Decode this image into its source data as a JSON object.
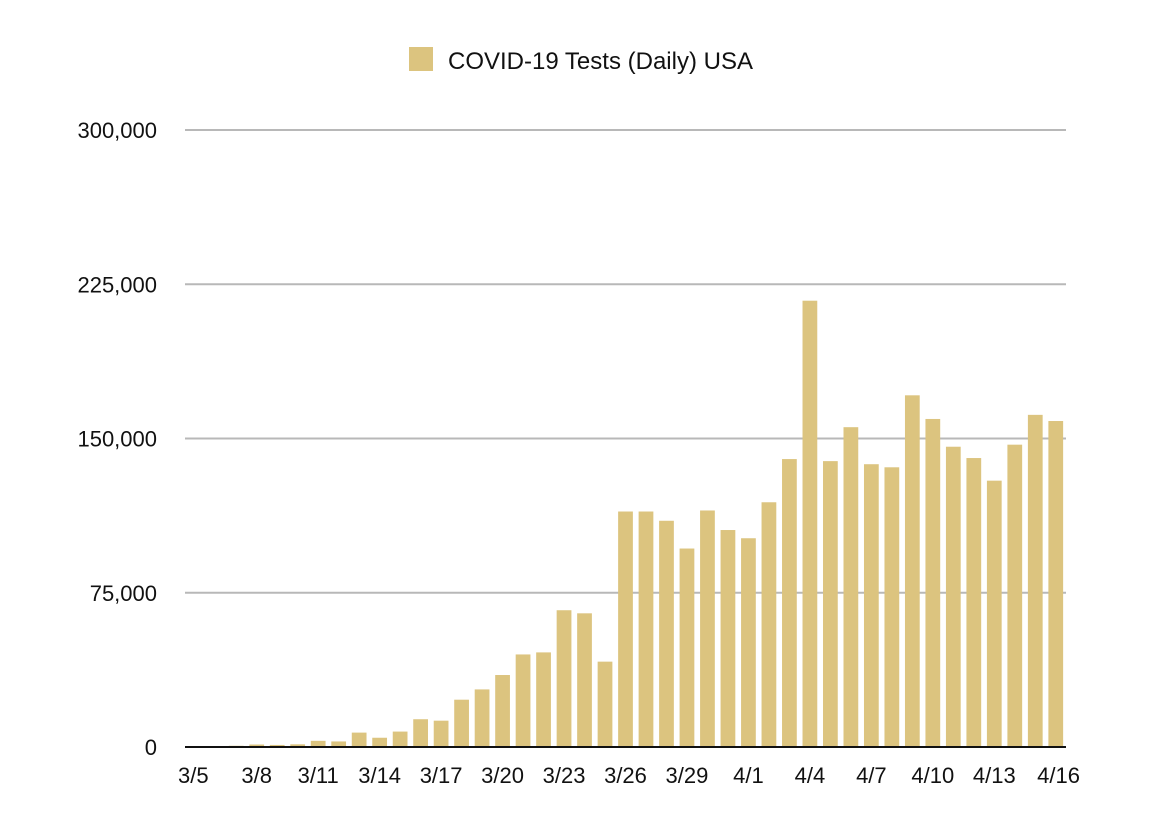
{
  "chart_data": {
    "type": "bar",
    "legend": {
      "label": "COVID-19 Tests (Daily) USA",
      "placement": "top-center"
    },
    "colors": {
      "bar": "#dcc47f",
      "grid": "#b8b8b8",
      "axis": "#111111"
    },
    "ylim": [
      0,
      300000
    ],
    "yticks": [
      0,
      75000,
      150000,
      225000,
      300000
    ],
    "ytick_labels": [
      "0",
      "75,000",
      "150,000",
      "225,000",
      "300,000"
    ],
    "grid": true,
    "categories": [
      "3/5",
      "3/6",
      "3/7",
      "3/8",
      "3/9",
      "3/10",
      "3/11",
      "3/12",
      "3/13",
      "3/14",
      "3/15",
      "3/16",
      "3/17",
      "3/18",
      "3/19",
      "3/20",
      "3/21",
      "3/22",
      "3/23",
      "3/24",
      "3/25",
      "3/26",
      "3/27",
      "3/28",
      "3/29",
      "3/30",
      "3/31",
      "4/1",
      "4/2",
      "4/3",
      "4/4",
      "4/5",
      "4/6",
      "4/7",
      "4/8",
      "4/9",
      "4/10",
      "4/11",
      "4/12",
      "4/13",
      "4/14",
      "4/15",
      "4/16"
    ],
    "xtick_labels": [
      "3/5",
      "",
      "",
      "3/8",
      "",
      "",
      "3/11",
      "",
      "",
      "3/14",
      "",
      "",
      "3/17",
      "",
      "",
      "3/20",
      "",
      "",
      "3/23",
      "",
      "",
      "3/26",
      "",
      "",
      "3/29",
      "",
      "",
      "4/1",
      "",
      "",
      "4/4",
      "",
      "",
      "4/7",
      "",
      "",
      "4/10",
      "",
      "",
      "4/13",
      "",
      "",
      "4/16"
    ],
    "values": [
      200,
      300,
      600,
      1200,
      1000,
      1300,
      3000,
      2700,
      7000,
      4500,
      7500,
      13500,
      12800,
      23000,
      28000,
      35000,
      45000,
      46000,
      66500,
      65000,
      41500,
      114500,
      114500,
      110000,
      96500,
      115000,
      105500,
      101500,
      119000,
      140000,
      217000,
      139000,
      155500,
      137500,
      136000,
      171000,
      159500,
      146000,
      140500,
      129500,
      147000,
      161500,
      158500
    ]
  }
}
